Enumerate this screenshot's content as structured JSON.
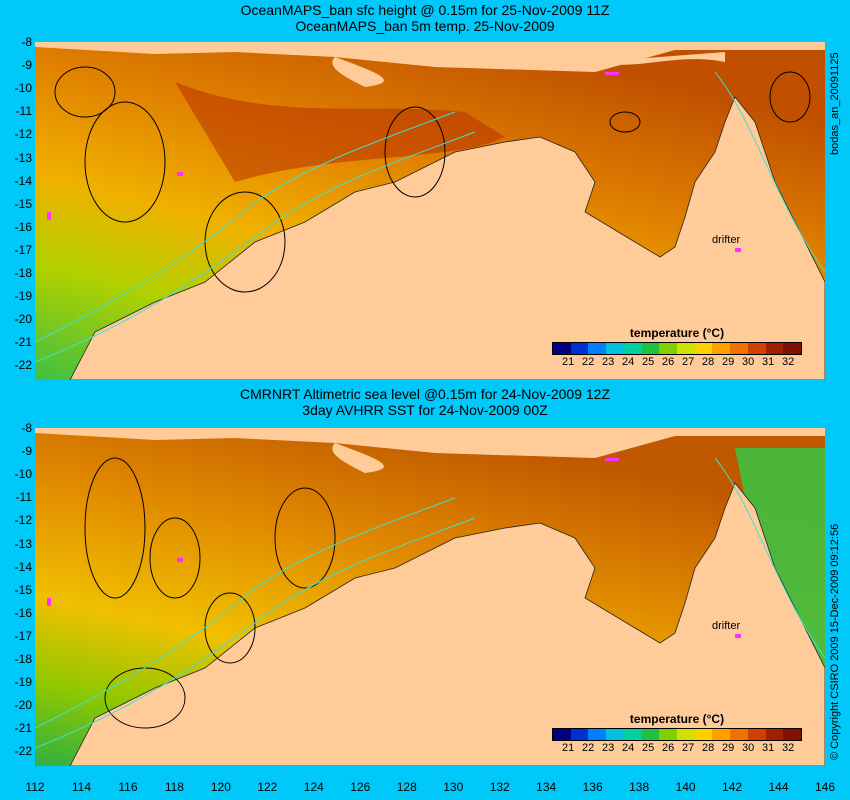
{
  "top": {
    "title_line1": "OceanMAPS_ban sfc height @ 0.15m for 25-Nov-2009 11Z",
    "title_line2": "OceanMAPS_ban 5m temp. 25-Nov-2009",
    "side_label": "bodas_an_20091125",
    "drifter_label": "drifter",
    "y_ticks": [
      "-8",
      "-9",
      "-10",
      "-11",
      "-12",
      "-13",
      "-14",
      "-15",
      "-16",
      "-17",
      "-18",
      "-19",
      "-20",
      "-21",
      "-22"
    ]
  },
  "bottom": {
    "title_line1": "CMRNRT Altimetric sea level  @0.15m  for 24-Nov-2009 12Z",
    "title_line2": "3day AVHRR SST for 24-Nov-2009 00Z",
    "side_label": "© Copyright CSIRO 2009   15-Dec-2009 09:12:56",
    "drifter_label": "drifter",
    "y_ticks": [
      "-8",
      "-9",
      "-10",
      "-11",
      "-12",
      "-13",
      "-14",
      "-15",
      "-16",
      "-17",
      "-18",
      "-19",
      "-20",
      "-21",
      "-22"
    ]
  },
  "colorbar": {
    "title": "temperature (°C)",
    "ticks": [
      "21",
      "22",
      "23",
      "24",
      "25",
      "26",
      "27",
      "28",
      "29",
      "30",
      "31",
      "32"
    ],
    "colors": [
      "#000080",
      "#0030d0",
      "#0080ff",
      "#00c0e0",
      "#00d0a0",
      "#20c040",
      "#80d000",
      "#d0e000",
      "#ffd000",
      "#ffa000",
      "#f07000",
      "#d04000",
      "#a02000",
      "#801000"
    ]
  },
  "x_ticks": [
    "112",
    "114",
    "116",
    "118",
    "120",
    "122",
    "124",
    "126",
    "128",
    "130",
    "132",
    "134",
    "136",
    "138",
    "140",
    "142",
    "144",
    "146"
  ],
  "colors": {
    "background": "#00c8f8",
    "land": "#ffcc99",
    "contour_cyan": "#40e0d0",
    "drifter": "#ff30ff"
  }
}
